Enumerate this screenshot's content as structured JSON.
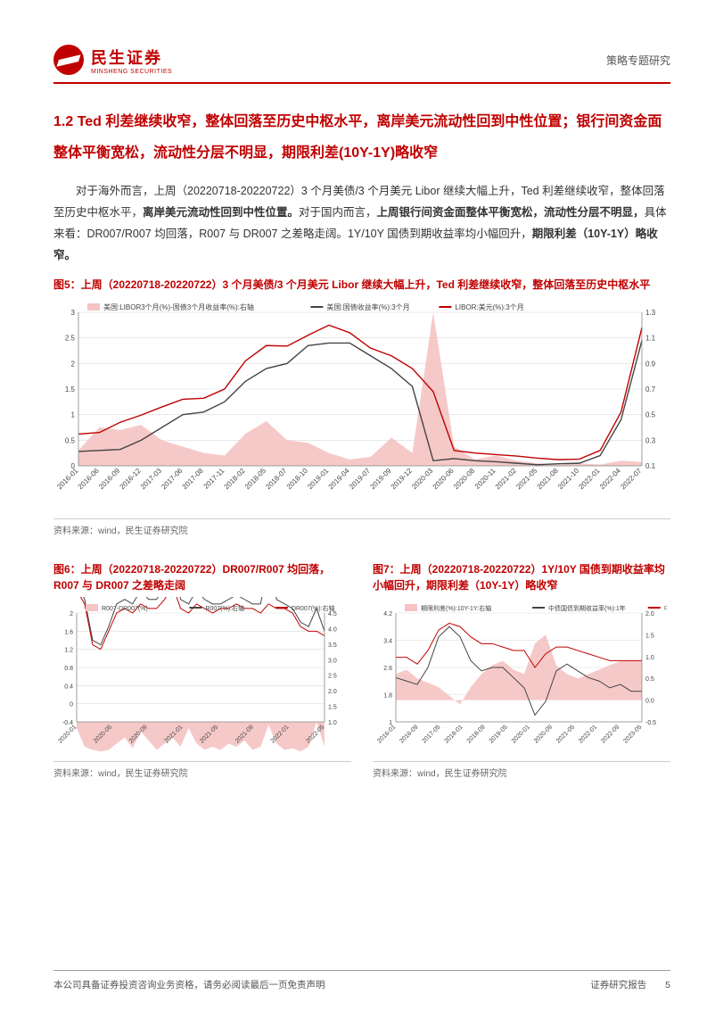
{
  "header": {
    "logo_cn": "民生证券",
    "logo_en": "MINSHENG SECURITIES",
    "right": "策略专题研究"
  },
  "section_title": "1.2 Ted 利差继续收窄，整体回落至历史中枢水平，离岸美元流动性回到中性位置；银行间资金面整体平衡宽松，流动性分层不明显，期限利差(10Y-1Y)略收窄",
  "paragraph": {
    "p1": "对于海外而言，上周（20220718-20220722）3 个月美债/3 个月美元 Libor 继续大幅上升，Ted 利差继续收窄，整体回落至历史中枢水平，",
    "p1b": "离岸美元流动性回到中性位置。",
    "p2": "对于国内而言，",
    "p2b": "上周银行间资金面整体平衡宽松，流动性分层不明显，",
    "p3": "具体来看：DR007/R007 均回落，R007 与 DR007 之差略走阔。1Y/10Y 国债到期收益率均小幅回升，",
    "p3b": "期限利差（10Y-1Y）略收窄。"
  },
  "chart5": {
    "type": "line-area-dual-axis",
    "title": "图5：上周（20220718-20220722）3 个月美债/3 个月美元 Libor 继续大幅上升，Ted 利差继续收窄，整体回落至历史中枢水平",
    "legend": [
      "美国:LIBOR3个月(%)-国债3个月收益率(%):右轴",
      "美国:国债收益率(%):3个月",
      "LIBOR:美元(%):3个月"
    ],
    "legend_colors": [
      "#f5c3c3",
      "#444444",
      "#c00000"
    ],
    "y_left": {
      "min": 0,
      "max": 3,
      "step": 0.5
    },
    "y_right": {
      "min": 0.1,
      "max": 1.3,
      "step": 0.2
    },
    "x_labels": [
      "2016-01",
      "2016-06",
      "2016-09",
      "2016-12",
      "2017-03",
      "2017-06",
      "2017-08",
      "2017-11",
      "2018-02",
      "2018-05",
      "2018-07",
      "2018-10",
      "2019-01",
      "2019-04",
      "2019-07",
      "2019-09",
      "2019-12",
      "2020-03",
      "2020-06",
      "2020-08",
      "2020-11",
      "2021-02",
      "2021-05",
      "2021-08",
      "2021-10",
      "2022-01",
      "2022-04",
      "2022-07"
    ],
    "grid_color": "#d9d9d9",
    "background_color": "#ffffff",
    "area_color": "#f5c3c3",
    "line1_color": "#444444",
    "line2_color": "#c00000",
    "area_points": [
      0.22,
      0.4,
      0.38,
      0.42,
      0.3,
      0.25,
      0.2,
      0.18,
      0.35,
      0.45,
      0.3,
      0.28,
      0.2,
      0.15,
      0.17,
      0.32,
      0.2,
      1.3,
      0.25,
      0.15,
      0.18,
      0.14,
      0.12,
      0.11,
      0.12,
      0.11,
      0.14,
      0.13
    ],
    "line1_points": [
      0.28,
      0.3,
      0.32,
      0.5,
      0.75,
      1.0,
      1.05,
      1.25,
      1.65,
      1.9,
      2.0,
      2.35,
      2.4,
      2.4,
      2.15,
      1.9,
      1.55,
      0.1,
      0.14,
      0.1,
      0.08,
      0.05,
      0.02,
      0.04,
      0.05,
      0.2,
      0.9,
      2.45
    ],
    "line2_points": [
      0.62,
      0.65,
      0.85,
      0.99,
      1.15,
      1.3,
      1.32,
      1.5,
      2.05,
      2.35,
      2.34,
      2.55,
      2.75,
      2.6,
      2.3,
      2.15,
      1.9,
      1.45,
      0.3,
      0.25,
      0.22,
      0.19,
      0.15,
      0.12,
      0.13,
      0.3,
      1.05,
      2.7
    ],
    "source": "资料来源：wind，民生证券研究院",
    "label_fontsize": 8,
    "line_width": 1.4
  },
  "chart6": {
    "type": "line-area-dual-axis",
    "title": "图6：上周（20220718-20220722）DR007/R007 均回落，R007 与 DR007 之差略走阔",
    "legend": [
      "R007-DR007(%)",
      "R007(%):右轴",
      "DR007(%):右轴"
    ],
    "legend_colors": [
      "#f5c3c3",
      "#444444",
      "#c00000"
    ],
    "y_left": {
      "min": -0.4,
      "max": 2.0,
      "step": 0.4
    },
    "y_right": {
      "min": 1.0,
      "max": 4.5,
      "step": 0.5
    },
    "x_labels": [
      "2020-01",
      "2020-05",
      "2020-09",
      "2021-01",
      "2021-05",
      "2021-09",
      "2022-01",
      "2022-05"
    ],
    "grid_color": "#d9d9d9",
    "area_color": "#f5c3c3",
    "line1_color": "#444444",
    "line2_color": "#c00000",
    "area_points": [
      0.8,
      0.2,
      0.1,
      0.05,
      0.1,
      0.3,
      0.5,
      0.15,
      0.7,
      0.4,
      0.1,
      0.3,
      0.5,
      0.2,
      0.8,
      0.3,
      0.1,
      0.2,
      0.1,
      0.3,
      0.2,
      0.4,
      0.1,
      0.2,
      0.9,
      0.3,
      0.1,
      0.15,
      0.05,
      0.2,
      1.0,
      0.2
    ],
    "line1_points": [
      2.7,
      2.3,
      1.4,
      1.3,
      1.7,
      2.2,
      2.3,
      2.2,
      2.5,
      2.3,
      2.3,
      2.6,
      3.2,
      2.3,
      2.2,
      2.5,
      2.3,
      2.2,
      2.2,
      2.3,
      2.4,
      2.3,
      2.2,
      2.2,
      3.1,
      2.3,
      2.2,
      2.1,
      1.8,
      1.7,
      2.1,
      1.6
    ],
    "line2_points": [
      2.5,
      2.2,
      1.3,
      1.2,
      1.6,
      2.0,
      2.1,
      2.0,
      2.2,
      2.1,
      2.1,
      2.3,
      2.6,
      2.1,
      2.0,
      2.2,
      2.1,
      2.0,
      2.1,
      2.1,
      2.2,
      2.1,
      2.1,
      2.0,
      2.2,
      2.1,
      2.1,
      2.0,
      1.7,
      1.6,
      1.6,
      1.5
    ],
    "source": "资料来源：wind，民生证券研究院",
    "label_fontsize": 7,
    "line_width": 1.0
  },
  "chart7": {
    "type": "line-area-dual-axis",
    "title": "图7：上周（20220718-20220722）1Y/10Y 国债到期收益率均小幅回升，期限利差（10Y-1Y）略收窄",
    "legend": [
      "期限利差(%):10Y-1Y:右轴",
      "中债国债到期收益率(%):1年",
      "中债国债到期收益率(%):10年"
    ],
    "legend_colors": [
      "#f5c3c3",
      "#444444",
      "#c00000"
    ],
    "y_left": {
      "min": 1.0,
      "max": 4.2,
      "step": 0.8
    },
    "y_right": {
      "min": -0.5,
      "max": 2.0,
      "step": 0.5
    },
    "x_labels": [
      "2016-01",
      "2016-09",
      "2017-05",
      "2018-01",
      "2018-09",
      "2019-05",
      "2020-01",
      "2020-09",
      "2021-05",
      "2022-01",
      "2022-09",
      "2023-05"
    ],
    "grid_color": "#d9d9d9",
    "area_color": "#f5c3c3",
    "line1_color": "#444444",
    "line2_color": "#c00000",
    "area_points": [
      0.6,
      0.7,
      0.5,
      0.4,
      0.3,
      0.1,
      -0.1,
      0.3,
      0.6,
      0.8,
      0.9,
      0.7,
      0.6,
      1.3,
      1.5,
      0.8,
      0.6,
      0.5,
      0.6,
      0.7,
      0.8,
      0.9,
      0.9,
      0.9
    ],
    "line1_points": [
      2.3,
      2.2,
      2.1,
      2.6,
      3.5,
      3.8,
      3.5,
      2.8,
      2.5,
      2.6,
      2.6,
      2.3,
      2.0,
      1.2,
      1.6,
      2.5,
      2.7,
      2.5,
      2.3,
      2.2,
      2.0,
      2.1,
      1.9,
      1.9
    ],
    "line2_points": [
      2.9,
      2.9,
      2.7,
      3.1,
      3.7,
      3.9,
      3.8,
      3.5,
      3.3,
      3.3,
      3.2,
      3.1,
      3.1,
      2.6,
      3.0,
      3.2,
      3.2,
      3.1,
      3.0,
      2.9,
      2.8,
      2.8,
      2.8,
      2.8
    ],
    "source": "资料来源：wind，民生证券研究院",
    "label_fontsize": 7,
    "line_width": 1.0
  },
  "footer": {
    "left": "本公司具备证券投资咨询业务资格，请务必阅读最后一页免责声明",
    "right": "证券研究报告",
    "page": "5"
  }
}
